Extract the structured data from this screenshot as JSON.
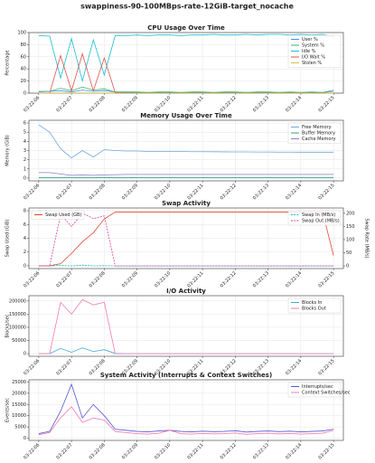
{
  "title": "swappiness-90-100MBps-rate-12GiB-target_nocache",
  "chart_data": [
    {
      "type": "line",
      "title": "CPU Usage Over Time",
      "ylabel": "Percentage",
      "categories": [
        "03:22:06",
        null,
        null,
        "03:22:07",
        null,
        null,
        "03:22:08",
        null,
        null,
        "03:22:09",
        null,
        null,
        "03:22:10",
        null,
        null,
        "03:22:11",
        null,
        null,
        "03:22:12",
        null,
        null,
        "03:22:13",
        null,
        null,
        "03:22:14",
        null,
        null,
        "03:22:15"
      ],
      "ylim": [
        0,
        100
      ],
      "yticks": [
        0,
        20,
        40,
        60,
        80,
        100
      ],
      "grid": true,
      "legend": "upper right",
      "series": [
        {
          "name": "User %",
          "color": "#4a90d9",
          "values": [
            2,
            3,
            4,
            2,
            5,
            3,
            4,
            2,
            1,
            1,
            1,
            1,
            1,
            1,
            1,
            1,
            1,
            1,
            1,
            1,
            1,
            1,
            1,
            1,
            1,
            1,
            1,
            3
          ]
        },
        {
          "name": "System %",
          "color": "#3cb371",
          "values": [
            3,
            3,
            8,
            4,
            10,
            5,
            7,
            2,
            2,
            2,
            1,
            2,
            2,
            1,
            2,
            2,
            1,
            2,
            2,
            1,
            2,
            2,
            1,
            2,
            1,
            2,
            1,
            5
          ]
        },
        {
          "name": "Idle %",
          "color": "#17becf",
          "values": [
            95,
            94,
            25,
            90,
            20,
            88,
            30,
            95,
            95,
            96,
            95,
            96,
            96,
            95,
            96,
            96,
            97,
            96,
            96,
            97,
            96,
            97,
            97,
            96,
            97,
            96,
            97,
            93
          ]
        },
        {
          "name": "I/O Wait %",
          "color": "#e05050",
          "values": [
            0,
            0,
            62,
            4,
            65,
            4,
            58,
            1,
            0,
            0,
            0,
            0,
            0,
            0,
            0,
            0,
            0,
            0,
            0,
            0,
            0,
            0,
            0,
            0,
            0,
            0,
            0,
            0
          ]
        },
        {
          "name": "Stolen %",
          "color": "#d4c040",
          "values": [
            0,
            0,
            0,
            0,
            0,
            0,
            0,
            0,
            0,
            0,
            0,
            0,
            0,
            0,
            0,
            0,
            0,
            0,
            0,
            0,
            0,
            0,
            0,
            0,
            0,
            0,
            0,
            0
          ]
        }
      ]
    },
    {
      "type": "line",
      "title": "Memory Usage Over Time",
      "ylabel": "Memory (GiB)",
      "categories": [
        "03:22:06",
        null,
        null,
        "03:22:07",
        null,
        null,
        "03:22:08",
        null,
        null,
        "03:22:09",
        null,
        null,
        "03:22:10",
        null,
        null,
        "03:22:11",
        null,
        null,
        "03:22:12",
        null,
        null,
        "03:22:13",
        null,
        null,
        "03:22:14",
        null,
        null,
        "03:22:15"
      ],
      "ylim": [
        -0.3,
        6.3
      ],
      "yticks": [
        0,
        1,
        2,
        3,
        4,
        5,
        6
      ],
      "grid": true,
      "legend": "upper right",
      "series": [
        {
          "name": "Free Memory",
          "color": "#6fa8dc",
          "values": [
            5.8,
            5.0,
            3.2,
            2.2,
            3.0,
            2.3,
            3.1,
            3.0,
            2.95,
            2.95,
            2.9,
            2.9,
            2.9,
            2.9,
            2.88,
            2.88,
            2.87,
            2.86,
            2.85,
            2.85,
            2.84,
            2.84,
            2.83,
            2.83,
            2.82,
            2.82,
            2.82,
            2.82
          ]
        },
        {
          "name": "Buffer Memory",
          "color": "#2ca58d",
          "values": [
            0.05,
            0.05,
            0.05,
            0.05,
            0.05,
            0.05,
            0.05,
            0.05,
            0.05,
            0.05,
            0.05,
            0.05,
            0.05,
            0.05,
            0.05,
            0.05,
            0.05,
            0.05,
            0.05,
            0.05,
            0.05,
            0.05,
            0.05,
            0.05,
            0.05,
            0.05,
            0.05,
            0.05
          ]
        },
        {
          "name": "Cache Memory",
          "color": "#8e7cc3",
          "values": [
            0.6,
            0.6,
            0.45,
            0.3,
            0.35,
            0.3,
            0.35,
            0.38,
            0.4,
            0.4,
            0.4,
            0.4,
            0.4,
            0.4,
            0.4,
            0.4,
            0.4,
            0.4,
            0.4,
            0.4,
            0.4,
            0.4,
            0.4,
            0.4,
            0.4,
            0.4,
            0.4,
            0.4
          ]
        }
      ]
    },
    {
      "type": "line",
      "title": "Swap Activity",
      "ylabel": "Swap Used (GiB)",
      "y2label": "Swap Rate (MB/s)",
      "categories": [
        "03:22:06",
        null,
        null,
        "03:22:07",
        null,
        null,
        "03:22:08",
        null,
        null,
        "03:22:09",
        null,
        null,
        "03:22:10",
        null,
        null,
        "03:22:11",
        null,
        null,
        "03:22:12",
        null,
        null,
        "03:22:13",
        null,
        null,
        "03:22:14",
        null,
        null,
        "03:22:15"
      ],
      "ylim": [
        -0.4,
        8.4
      ],
      "yticks": [
        0,
        2,
        4,
        6,
        8
      ],
      "y2lim": [
        -10,
        220
      ],
      "y2ticks": [
        0,
        50,
        100,
        150,
        200
      ],
      "grid": true,
      "legend": "upper right",
      "series": [
        {
          "name": "Swap Used (GB)",
          "color": "#e0492f",
          "values": [
            0,
            0,
            0.3,
            1.8,
            3.5,
            4.8,
            6.8,
            7.8,
            7.8,
            7.8,
            7.8,
            7.8,
            7.8,
            7.8,
            7.8,
            7.8,
            7.8,
            7.8,
            7.8,
            7.8,
            7.8,
            7.8,
            7.8,
            7.8,
            7.8,
            7.8,
            7.8,
            1.5
          ]
        },
        {
          "name": "Swap In (MB/s)",
          "color": "#17becf",
          "axis": "y2",
          "linestyle": "dashed",
          "values": [
            0,
            0,
            2,
            0,
            3,
            0,
            1,
            0,
            0,
            0,
            0,
            0,
            0,
            0,
            0,
            0,
            0,
            0,
            0,
            0,
            0,
            0,
            0,
            0,
            0,
            0,
            0,
            0
          ]
        },
        {
          "name": "Swap Out (MB/s)",
          "color": "#e0409a",
          "axis": "y2",
          "linestyle": "dashed",
          "values": [
            0,
            0,
            195,
            150,
            200,
            180,
            190,
            0,
            0,
            0,
            0,
            0,
            0,
            0,
            0,
            0,
            0,
            0,
            0,
            0,
            0,
            0,
            0,
            0,
            0,
            0,
            0,
            0
          ]
        }
      ]
    },
    {
      "type": "line",
      "title": "I/O Activity",
      "ylabel": "Blocks/sec",
      "categories": [
        "03:22:06",
        null,
        null,
        "03:22:07",
        null,
        null,
        "03:22:08",
        null,
        null,
        "03:22:09",
        null,
        null,
        "03:22:10",
        null,
        null,
        "03:22:11",
        null,
        null,
        "03:22:12",
        null,
        null,
        "03:22:13",
        null,
        null,
        "03:22:14",
        null,
        null,
        "03:22:15"
      ],
      "ylim": [
        -10000,
        220000
      ],
      "yticks": [
        0,
        50000,
        100000,
        150000,
        200000
      ],
      "grid": true,
      "legend": "upper right",
      "series": [
        {
          "name": "Blocks In",
          "color": "#3fa9d6",
          "values": [
            0,
            0,
            20000,
            5000,
            22000,
            8000,
            15000,
            1000,
            0,
            0,
            0,
            0,
            0,
            0,
            0,
            0,
            0,
            0,
            0,
            0,
            0,
            0,
            0,
            0,
            0,
            0,
            0,
            0
          ]
        },
        {
          "name": "Blocks Out",
          "color": "#f07cb0",
          "values": [
            0,
            0,
            195000,
            150000,
            205000,
            185000,
            195000,
            0,
            0,
            0,
            0,
            0,
            0,
            0,
            0,
            0,
            0,
            0,
            0,
            0,
            0,
            0,
            0,
            0,
            0,
            0,
            0,
            0
          ]
        }
      ]
    },
    {
      "type": "line",
      "title": "System Activity (Interrupts & Context Switches)",
      "ylabel": "Events/sec",
      "categories": [
        "03:22:06",
        null,
        null,
        "03:22:07",
        null,
        null,
        "03:22:08",
        null,
        null,
        "03:22:09",
        null,
        null,
        "03:22:10",
        null,
        null,
        "03:22:11",
        null,
        null,
        "03:22:12",
        null,
        null,
        "03:22:13",
        null,
        null,
        "03:22:14",
        null,
        null,
        "03:22:15"
      ],
      "ylim": [
        -1000,
        26000
      ],
      "yticks": [
        0,
        5000,
        10000,
        15000,
        20000,
        25000
      ],
      "grid": true,
      "legend": "upper right",
      "series": [
        {
          "name": "Interrupts/sec",
          "color": "#5a55d6",
          "values": [
            2000,
            3000,
            12000,
            24000,
            9000,
            15000,
            10000,
            4000,
            3500,
            3000,
            2800,
            3200,
            3500,
            3000,
            2800,
            3100,
            2900,
            3000,
            3300,
            2700,
            3000,
            3200,
            2900,
            3100,
            2800,
            3000,
            3200,
            4000
          ]
        },
        {
          "name": "Context Switches/sec",
          "color": "#f07cb0",
          "values": [
            1500,
            2500,
            9000,
            14000,
            7000,
            9000,
            8000,
            3000,
            2500,
            2000,
            1800,
            2200,
            3500,
            2000,
            1800,
            2100,
            1900,
            2000,
            2300,
            1700,
            2000,
            2200,
            1900,
            2100,
            1800,
            2000,
            2200,
            3500
          ]
        }
      ]
    }
  ]
}
